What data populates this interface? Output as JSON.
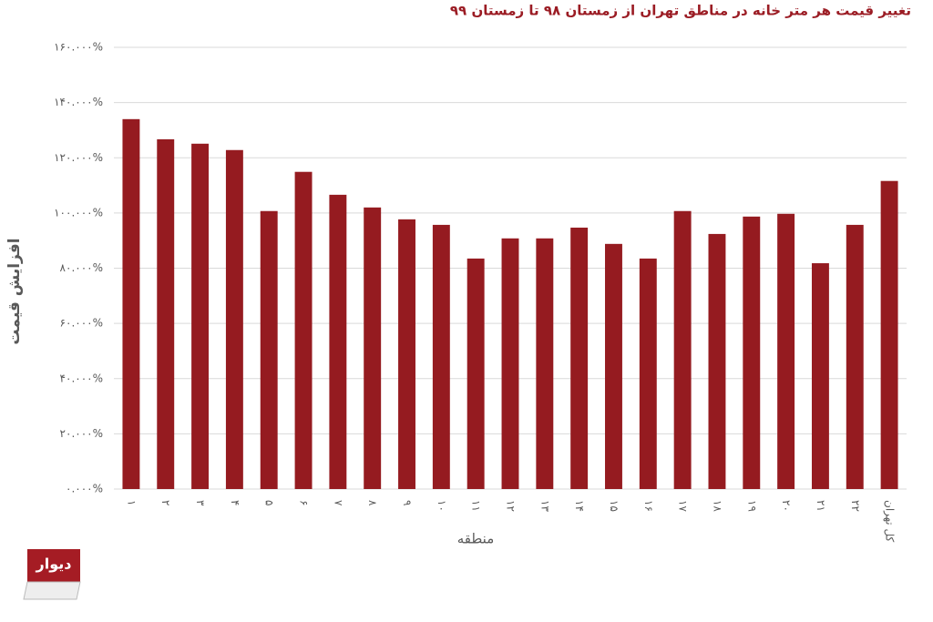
{
  "chart_data": {
    "type": "bar",
    "title": "تغییر قیمت هر متر خانه در مناطق تهران از زمستان ۹۸ تا زمستان ۹۹",
    "x_label": "منطقه",
    "y_label": "افزایش قیمت",
    "categories": [
      "۱",
      "۲",
      "۳",
      "۴",
      "۵",
      "۶",
      "۷",
      "۸",
      "۹",
      "۱۰",
      "۱۱",
      "۱۲",
      "۱۳",
      "۱۴",
      "۱۵",
      "۱۶",
      "۱۷",
      "۱۸",
      "۱۹",
      "۲۰",
      "۲۱",
      "۲۲",
      "کل تهران"
    ],
    "values": [
      134.0,
      126.7,
      125.1,
      122.8,
      100.7,
      114.9,
      106.6,
      102.0,
      97.7,
      95.7,
      83.5,
      90.8,
      90.8,
      94.7,
      88.8,
      83.5,
      100.7,
      92.4,
      98.7,
      99.7,
      81.8,
      95.7,
      111.6
    ],
    "color": "#951b20",
    "ylim": [
      0,
      160
    ],
    "yticks": [
      {
        "value": 0,
        "label": "۰.۰۰۰%"
      },
      {
        "value": 20,
        "label": "۲۰.۰۰۰%"
      },
      {
        "value": 40,
        "label": "۴۰.۰۰۰%"
      },
      {
        "value": 60,
        "label": "۶۰.۰۰۰%"
      },
      {
        "value": 80,
        "label": "۸۰.۰۰۰%"
      },
      {
        "value": 100,
        "label": "۱۰۰.۰۰۰%"
      },
      {
        "value": 120,
        "label": "۱۲۰.۰۰۰%"
      },
      {
        "value": 140,
        "label": "۱۴۰.۰۰۰%"
      },
      {
        "value": 160,
        "label": "۱۶۰.۰۰۰%"
      }
    ],
    "grid": true
  },
  "logo": "دیوار"
}
